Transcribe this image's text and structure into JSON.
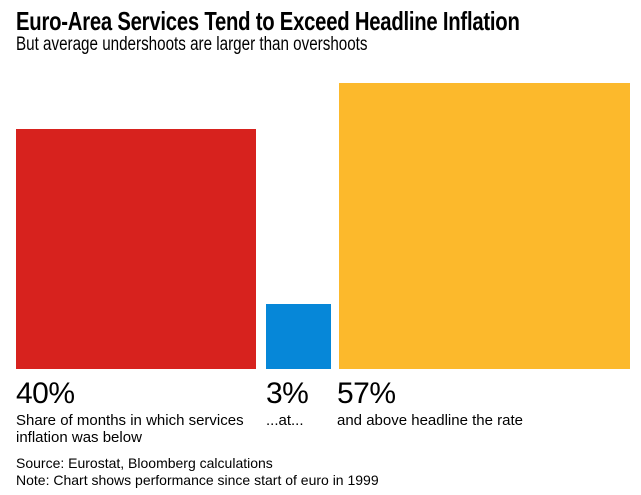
{
  "header": {
    "title": "Euro-Area Services Tend to Exceed Headline Inflation",
    "subtitle": "But average undershoots are larger than overshoots"
  },
  "chart_data": {
    "type": "bar",
    "title": "Euro-Area Services Tend to Exceed Headline Inflation",
    "subtitle": "But average undershoots are larger than overshoots",
    "categories": [
      "below",
      "at",
      "above"
    ],
    "values": [
      40,
      3,
      57
    ],
    "unit": "%",
    "legend_position": "none",
    "axes_visible": false,
    "grid": false,
    "bars": [
      {
        "key": "below",
        "value": 40,
        "value_label": "40%",
        "description": "Share of months in which services inflation was below",
        "color": "#d7221e"
      },
      {
        "key": "at",
        "value": 3,
        "value_label": "3%",
        "description": "...at...",
        "color": "#0687d8"
      },
      {
        "key": "above",
        "value": 57,
        "value_label": "57%",
        "description": "and above headline the rate",
        "color": "#fcb92c"
      }
    ]
  },
  "footer": {
    "source": "Source: Eurostat, Bloomberg calculations",
    "note": "Note: Chart shows performance since start of euro in 1999"
  }
}
